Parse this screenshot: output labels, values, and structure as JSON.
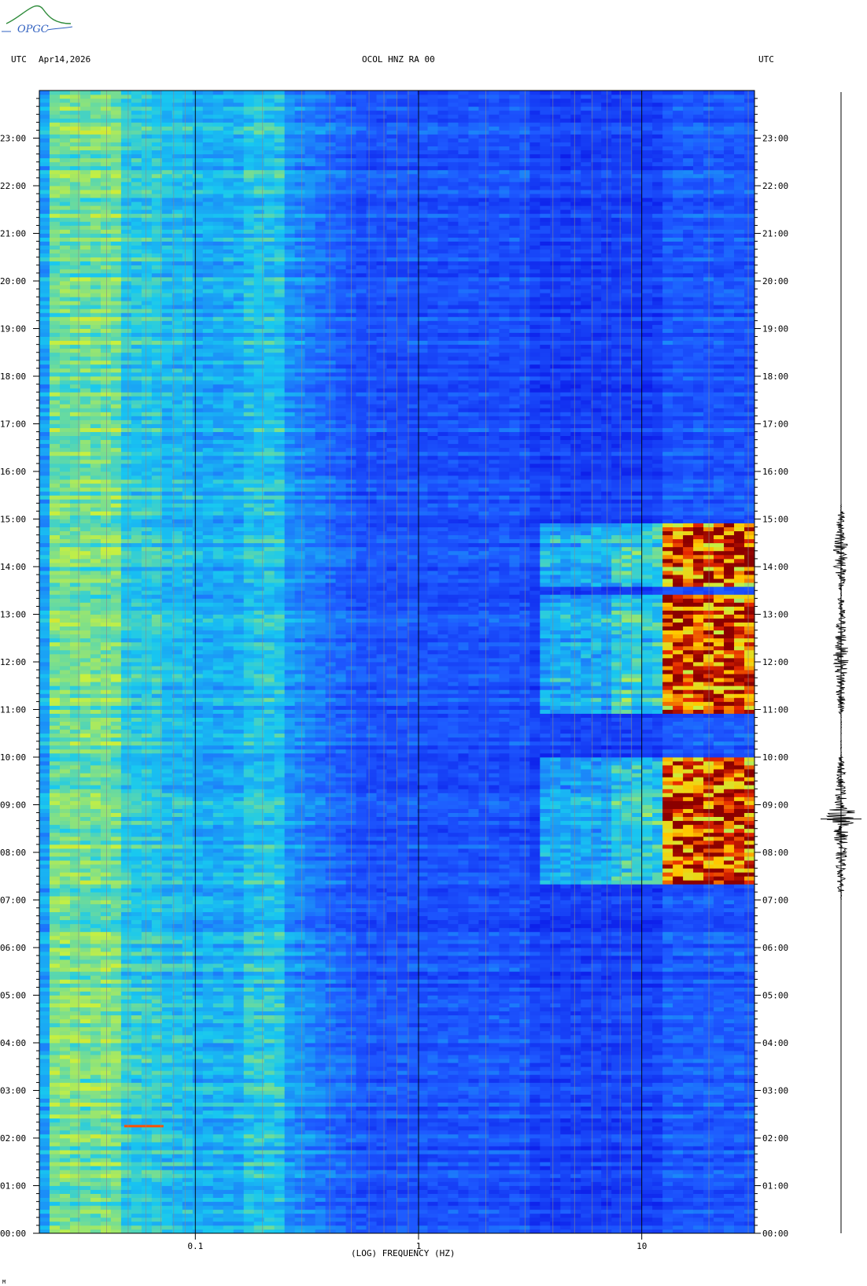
{
  "header": {
    "logo_text": "OPGC",
    "left_label": "UTC",
    "date": "Apr14,2026",
    "station": "OCOL HNZ RA 00",
    "right_label": "UTC"
  },
  "footer_mark": "M",
  "chart_data": {
    "type": "heatmap",
    "title": "OCOL HNZ RA 00",
    "xlabel": "(LOG) FREQUENCY (HZ)",
    "ylabel": "UTC",
    "x_scale": "log",
    "xlim": [
      0.02,
      32
    ],
    "ylim_hours": [
      0,
      24
    ],
    "x_ticks": [
      {
        "value": 0.1,
        "label": "0.1"
      },
      {
        "value": 1,
        "label": "1"
      },
      {
        "value": 10,
        "label": "10"
      }
    ],
    "y_ticks": [
      "00:00",
      "01:00",
      "02:00",
      "03:00",
      "04:00",
      "05:00",
      "06:00",
      "07:00",
      "08:00",
      "09:00",
      "10:00",
      "11:00",
      "12:00",
      "13:00",
      "14:00",
      "15:00",
      "16:00",
      "17:00",
      "18:00",
      "19:00",
      "20:00",
      "21:00",
      "22:00",
      "23:00"
    ],
    "grid": true,
    "colors": {
      "background": "#0a14e6",
      "low": "#1e5cff",
      "mid": "#18c8f0",
      "high": "#c8f040",
      "peak": "#8b0000",
      "line_orange": "#ff5000"
    },
    "high_energy_bands": [
      {
        "start": "07:20",
        "end": "10:00",
        "fmin": 3.5,
        "fmax": 32
      },
      {
        "start": "10:55",
        "end": "13:25",
        "fmin": 3.5,
        "fmax": 32
      },
      {
        "start": "13:35",
        "end": "14:55",
        "fmin": 3.5,
        "fmax": 32
      }
    ],
    "waveform_bursts": [
      {
        "start": "07:10",
        "end": "10:00"
      },
      {
        "start": "10:55",
        "end": "13:20"
      },
      {
        "start": "13:30",
        "end": "15:10"
      }
    ]
  }
}
